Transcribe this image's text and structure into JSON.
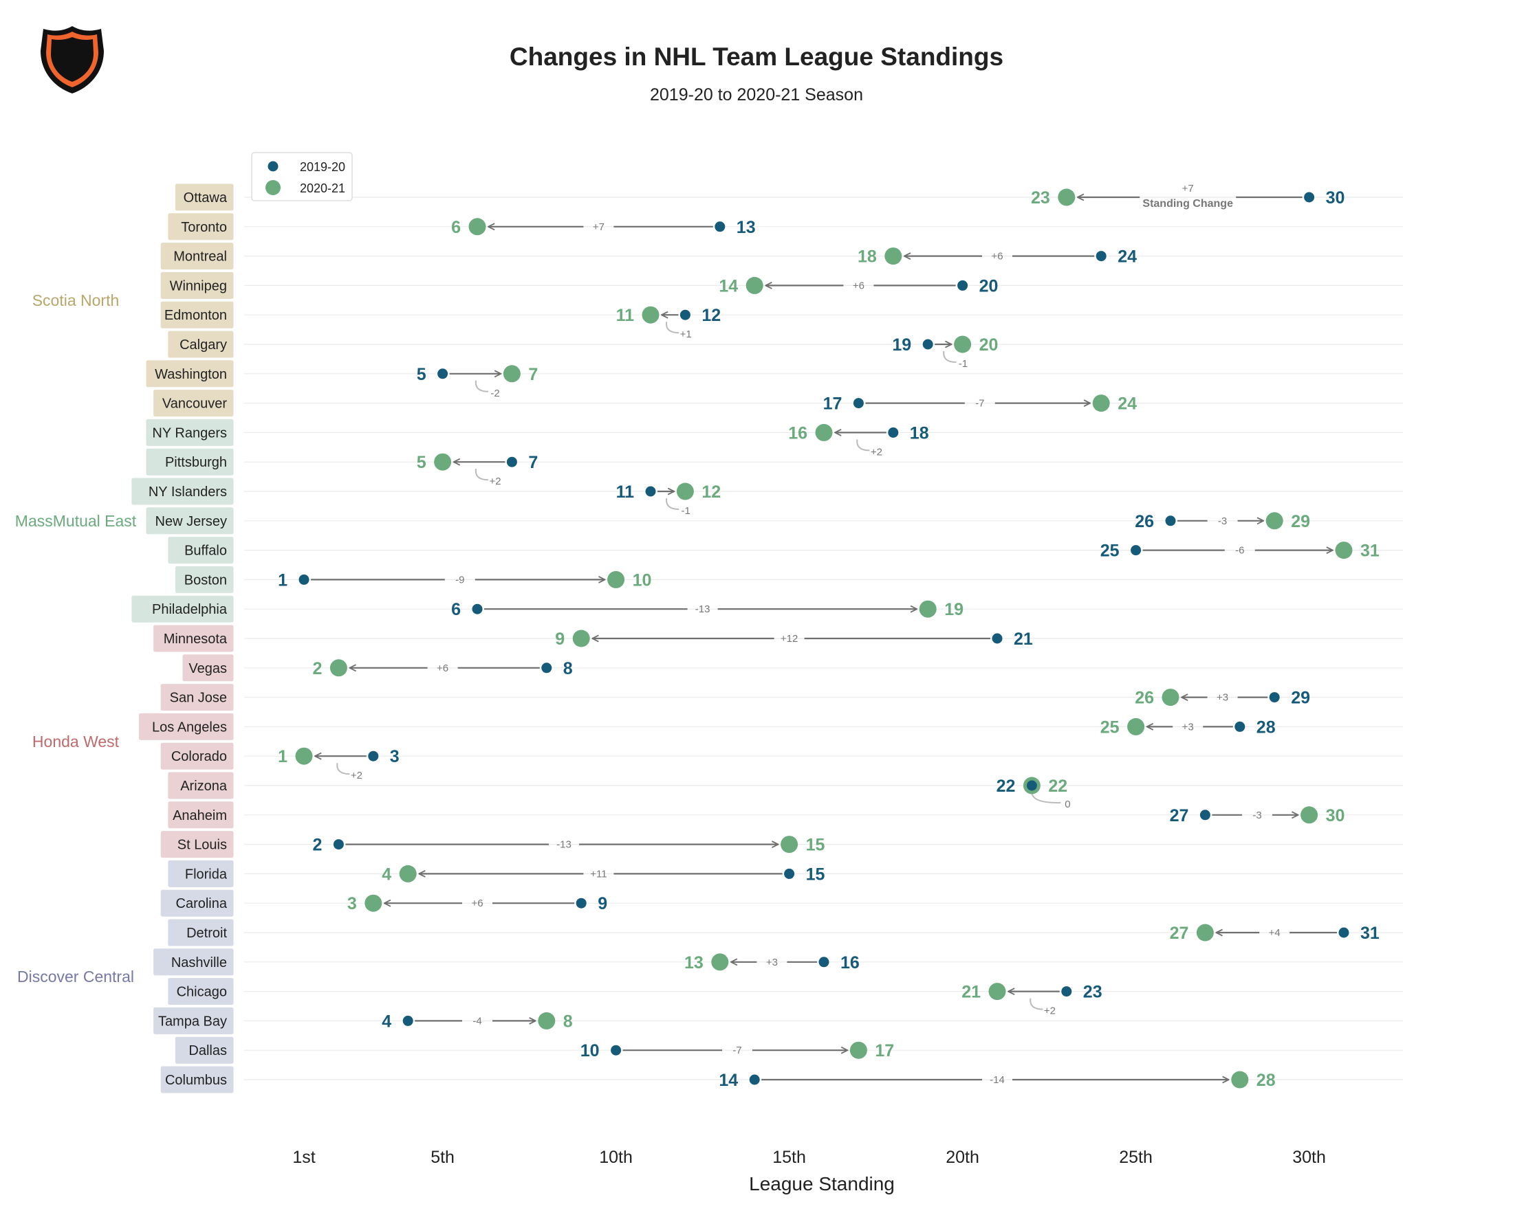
{
  "header": {
    "title": "Changes in NHL Team League Standings",
    "subtitle": "2019-20 to 2020-21 Season",
    "logo_text": "NHL"
  },
  "colors": {
    "prev": "#165a7a",
    "curr": "#6aaa7c",
    "arrow": "#6e6e6e",
    "grid": "#ebebeb",
    "division_text": {
      "Scotia North": "#b9a66a",
      "MassMutual East": "#6aaa7c",
      "Honda West": "#c06a6c",
      "Discover Central": "#7679a8"
    },
    "division_fill": {
      "Scotia North": "#e6dcc3",
      "MassMutual East": "#d6e6df",
      "Honda West": "#ead2d4",
      "Discover Central": "#d6d9e6"
    }
  },
  "chart_data": {
    "type": "dumbbell",
    "title": "Changes in NHL Team League Standings",
    "subtitle": "2019-20 to 2020-21 Season",
    "xlabel": "League Standing",
    "x_ticks": [
      1,
      5,
      10,
      15,
      20,
      25,
      30
    ],
    "x_tick_labels": [
      "1st",
      "5th",
      "10th",
      "15th",
      "20th",
      "25th",
      "30th"
    ],
    "xlim": [
      0.5,
      31.5
    ],
    "grid": true,
    "legend": {
      "position": "top-left",
      "entries": [
        "2019-20",
        "2020-21"
      ]
    },
    "annotation_label": "Standing Change",
    "teams": [
      {
        "team": "Ottawa",
        "division": "Scotia North",
        "prev": 30,
        "curr": 23,
        "change": "+7"
      },
      {
        "team": "Toronto",
        "division": "Scotia North",
        "prev": 13,
        "curr": 6,
        "change": "+7"
      },
      {
        "team": "Montreal",
        "division": "Scotia North",
        "prev": 24,
        "curr": 18,
        "change": "+6"
      },
      {
        "team": "Winnipeg",
        "division": "Scotia North",
        "prev": 20,
        "curr": 14,
        "change": "+6"
      },
      {
        "team": "Edmonton",
        "division": "Scotia North",
        "prev": 12,
        "curr": 11,
        "change": "+1"
      },
      {
        "team": "Calgary",
        "division": "Scotia North",
        "prev": 19,
        "curr": 20,
        "change": "-1"
      },
      {
        "team": "Washington",
        "division": "Scotia North",
        "prev": 5,
        "curr": 7,
        "change": "-2"
      },
      {
        "team": "Vancouver",
        "division": "Scotia North",
        "prev": 17,
        "curr": 24,
        "change": "-7"
      },
      {
        "team": "NY Rangers",
        "division": "MassMutual East",
        "prev": 18,
        "curr": 16,
        "change": "+2"
      },
      {
        "team": "Pittsburgh",
        "division": "MassMutual East",
        "prev": 7,
        "curr": 5,
        "change": "+2"
      },
      {
        "team": "NY Islanders",
        "division": "MassMutual East",
        "prev": 11,
        "curr": 12,
        "change": "-1"
      },
      {
        "team": "New Jersey",
        "division": "MassMutual East",
        "prev": 26,
        "curr": 29,
        "change": "-3"
      },
      {
        "team": "Buffalo",
        "division": "MassMutual East",
        "prev": 25,
        "curr": 31,
        "change": "-6"
      },
      {
        "team": "Boston",
        "division": "MassMutual East",
        "prev": 1,
        "curr": 10,
        "change": "-9"
      },
      {
        "team": "Philadelphia",
        "division": "MassMutual East",
        "prev": 6,
        "curr": 19,
        "change": "-13"
      },
      {
        "team": "Minnesota",
        "division": "Honda West",
        "prev": 21,
        "curr": 9,
        "change": "+12"
      },
      {
        "team": "Vegas",
        "division": "Honda West",
        "prev": 8,
        "curr": 2,
        "change": "+6"
      },
      {
        "team": "San Jose",
        "division": "Honda West",
        "prev": 29,
        "curr": 26,
        "change": "+3"
      },
      {
        "team": "Los Angeles",
        "division": "Honda West",
        "prev": 28,
        "curr": 25,
        "change": "+3"
      },
      {
        "team": "Colorado",
        "division": "Honda West",
        "prev": 3,
        "curr": 1,
        "change": "+2"
      },
      {
        "team": "Arizona",
        "division": "Honda West",
        "prev": 22,
        "curr": 22,
        "change": "0"
      },
      {
        "team": "Anaheim",
        "division": "Honda West",
        "prev": 27,
        "curr": 30,
        "change": "-3"
      },
      {
        "team": "St Louis",
        "division": "Honda West",
        "prev": 2,
        "curr": 15,
        "change": "-13"
      },
      {
        "team": "Florida",
        "division": "Discover Central",
        "prev": 15,
        "curr": 4,
        "change": "+11"
      },
      {
        "team": "Carolina",
        "division": "Discover Central",
        "prev": 9,
        "curr": 3,
        "change": "+6"
      },
      {
        "team": "Detroit",
        "division": "Discover Central",
        "prev": 31,
        "curr": 27,
        "change": "+4"
      },
      {
        "team": "Nashville",
        "division": "Discover Central",
        "prev": 16,
        "curr": 13,
        "change": "+3"
      },
      {
        "team": "Chicago",
        "division": "Discover Central",
        "prev": 23,
        "curr": 21,
        "change": "+2"
      },
      {
        "team": "Tampa Bay",
        "division": "Discover Central",
        "prev": 4,
        "curr": 8,
        "change": "-4"
      },
      {
        "team": "Dallas",
        "division": "Discover Central",
        "prev": 10,
        "curr": 17,
        "change": "-7"
      },
      {
        "team": "Columbus",
        "division": "Discover Central",
        "prev": 14,
        "curr": 28,
        "change": "-14"
      }
    ],
    "divisions": [
      "Scotia North",
      "MassMutual East",
      "Honda West",
      "Discover Central"
    ]
  }
}
